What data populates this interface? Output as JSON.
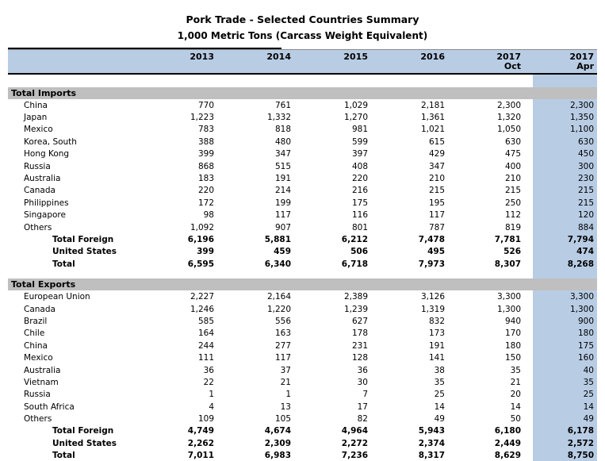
{
  "title": "Pork Trade - Selected Countries Summary",
  "subtitle": "1,000 Metric Tons (Carcass Weight Equivalent)",
  "colors": {
    "header_blue": "#B8CCE4",
    "band_gray": "#BFBFBF",
    "highlight_column_blue": "#B8CCE4",
    "border_black": "#000000"
  },
  "columns": [
    {
      "year": "2013",
      "sub": ""
    },
    {
      "year": "2014",
      "sub": ""
    },
    {
      "year": "2015",
      "sub": ""
    },
    {
      "year": "2016",
      "sub": ""
    },
    {
      "year": "2017",
      "sub": "Oct"
    },
    {
      "year": "2017",
      "sub": "Apr"
    }
  ],
  "sections": [
    {
      "label": "Total Imports",
      "rows": [
        {
          "label": "China",
          "type": "country",
          "values": [
            "770",
            "761",
            "1,029",
            "2,181",
            "2,300",
            "2,300"
          ]
        },
        {
          "label": "Japan",
          "type": "country",
          "values": [
            "1,223",
            "1,332",
            "1,270",
            "1,361",
            "1,320",
            "1,350"
          ]
        },
        {
          "label": "Mexico",
          "type": "country",
          "values": [
            "783",
            "818",
            "981",
            "1,021",
            "1,050",
            "1,100"
          ]
        },
        {
          "label": "Korea, South",
          "type": "country",
          "values": [
            "388",
            "480",
            "599",
            "615",
            "630",
            "630"
          ]
        },
        {
          "label": "Hong Kong",
          "type": "country",
          "values": [
            "399",
            "347",
            "397",
            "429",
            "475",
            "450"
          ]
        },
        {
          "label": "Russia",
          "type": "country",
          "values": [
            "868",
            "515",
            "408",
            "347",
            "400",
            "300"
          ]
        },
        {
          "label": "Australia",
          "type": "country",
          "values": [
            "183",
            "191",
            "220",
            "210",
            "210",
            "230"
          ]
        },
        {
          "label": "Canada",
          "type": "country",
          "values": [
            "220",
            "214",
            "216",
            "215",
            "215",
            "215"
          ]
        },
        {
          "label": "Philippines",
          "type": "country",
          "values": [
            "172",
            "199",
            "175",
            "195",
            "250",
            "215"
          ]
        },
        {
          "label": "Singapore",
          "type": "country",
          "values": [
            "98",
            "117",
            "116",
            "117",
            "112",
            "120"
          ]
        },
        {
          "label": "Others",
          "type": "country",
          "values": [
            "1,092",
            "907",
            "801",
            "787",
            "819",
            "884"
          ]
        },
        {
          "label": "Total Foreign",
          "type": "total",
          "values": [
            "6,196",
            "5,881",
            "6,212",
            "7,478",
            "7,781",
            "7,794"
          ]
        },
        {
          "label": "United States",
          "type": "total",
          "values": [
            "399",
            "459",
            "506",
            "495",
            "526",
            "474"
          ]
        },
        {
          "label": "Total",
          "type": "total",
          "values": [
            "6,595",
            "6,340",
            "6,718",
            "7,973",
            "8,307",
            "8,268"
          ]
        }
      ]
    },
    {
      "label": "Total Exports",
      "rows": [
        {
          "label": "European Union",
          "type": "country",
          "values": [
            "2,227",
            "2,164",
            "2,389",
            "3,126",
            "3,300",
            "3,300"
          ]
        },
        {
          "label": "Canada",
          "type": "country",
          "values": [
            "1,246",
            "1,220",
            "1,239",
            "1,319",
            "1,300",
            "1,300"
          ]
        },
        {
          "label": "Brazil",
          "type": "country",
          "values": [
            "585",
            "556",
            "627",
            "832",
            "940",
            "900"
          ]
        },
        {
          "label": "Chile",
          "type": "country",
          "values": [
            "164",
            "163",
            "178",
            "173",
            "170",
            "180"
          ]
        },
        {
          "label": "China",
          "type": "country",
          "values": [
            "244",
            "277",
            "231",
            "191",
            "180",
            "175"
          ]
        },
        {
          "label": "Mexico",
          "type": "country",
          "values": [
            "111",
            "117",
            "128",
            "141",
            "150",
            "160"
          ]
        },
        {
          "label": "Australia",
          "type": "country",
          "values": [
            "36",
            "37",
            "36",
            "38",
            "35",
            "40"
          ]
        },
        {
          "label": "Vietnam",
          "type": "country",
          "values": [
            "22",
            "21",
            "30",
            "35",
            "21",
            "35"
          ]
        },
        {
          "label": "Russia",
          "type": "country",
          "values": [
            "1",
            "1",
            "7",
            "25",
            "20",
            "25"
          ]
        },
        {
          "label": "South Africa",
          "type": "country",
          "values": [
            "4",
            "13",
            "17",
            "14",
            "14",
            "14"
          ]
        },
        {
          "label": "Others",
          "type": "country",
          "values": [
            "109",
            "105",
            "82",
            "49",
            "50",
            "49"
          ]
        },
        {
          "label": "Total Foreign",
          "type": "total",
          "values": [
            "4,749",
            "4,674",
            "4,964",
            "5,943",
            "6,180",
            "6,178"
          ]
        },
        {
          "label": "United States",
          "type": "total",
          "values": [
            "2,262",
            "2,309",
            "2,272",
            "2,374",
            "2,449",
            "2,572"
          ]
        },
        {
          "label": "Total",
          "type": "total",
          "values": [
            "7,011",
            "6,983",
            "7,236",
            "8,317",
            "8,629",
            "8,750"
          ]
        }
      ]
    }
  ]
}
